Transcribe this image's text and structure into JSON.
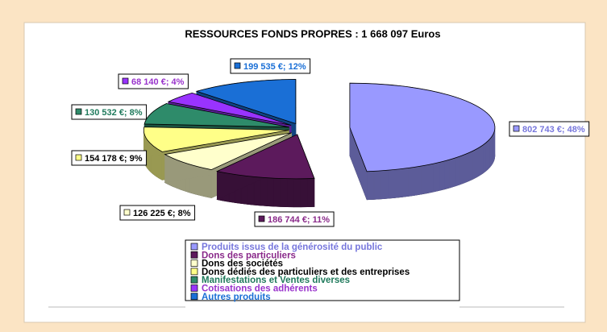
{
  "chart_data": {
    "type": "pie",
    "title": "RESSOURCES FONDS PROPRES : 1 668 097 Euros",
    "categories": [
      "Produits issus de la générosité du public",
      "Dons des particuliers",
      "Dons des sociétés",
      "Dons dédiés des particuliers et des entreprises",
      "Manifestations et Ventes diverses",
      "Cotisations des adhérents",
      "Autres produits"
    ],
    "values": [
      802743,
      186744,
      126225,
      154178,
      130532,
      68140,
      199535
    ],
    "value_labels": [
      "802 743 €; 48%",
      "186 744 €; 11%",
      "126 225 €; 8%",
      "154 178 €; 9%",
      "130 532 €; 8%",
      "68 140 €; 4%",
      "199 535 €; 12%"
    ],
    "colors": [
      "#9999ff",
      "#5c1a5c",
      "#ffffcc",
      "#ffff88",
      "#2e8b6a",
      "#9933ff",
      "#1a6fd6"
    ],
    "label_colors": [
      "#7777dd",
      "#8a2a8a",
      "#000000",
      "#000000",
      "#1f7a5c",
      "#9933cc",
      "#1a6fd6"
    ],
    "legend": "bottom"
  }
}
